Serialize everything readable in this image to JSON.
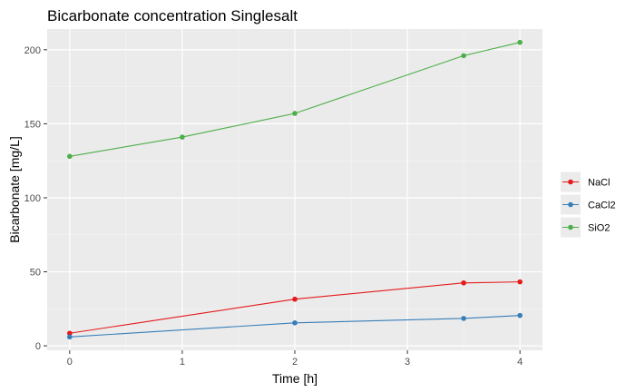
{
  "chart_data": {
    "type": "line",
    "title": "Bicarbonate concentration Singlesalt",
    "xlabel": "Time [h]",
    "ylabel": "Bicarbonate  [mg/L]",
    "xlim": [
      -0.2,
      4.2
    ],
    "ylim": [
      -3,
      214
    ],
    "x_ticks": [
      0,
      1,
      2,
      3,
      4
    ],
    "x_tick_labels": [
      "0",
      "1",
      "2",
      "3",
      "4"
    ],
    "y_ticks": [
      0,
      50,
      100,
      150,
      200
    ],
    "y_tick_labels": [
      "0",
      "50",
      "100",
      "150",
      "200"
    ],
    "grid": true,
    "legend_position": "right",
    "series": [
      {
        "name": "NaCl",
        "color": "#e41a1c",
        "x": [
          0,
          2,
          3.5,
          4
        ],
        "y": [
          8.5,
          31.5,
          42.5,
          43.2
        ]
      },
      {
        "name": "CaCl2",
        "color": "#377eb8",
        "x": [
          0,
          2,
          3.5,
          4
        ],
        "y": [
          6,
          15.5,
          18.5,
          20.5
        ]
      },
      {
        "name": "SiO2",
        "color": "#4daf4a",
        "x": [
          0,
          1,
          2,
          3.5,
          4
        ],
        "y": [
          128,
          141,
          157,
          196,
          205
        ]
      }
    ]
  }
}
